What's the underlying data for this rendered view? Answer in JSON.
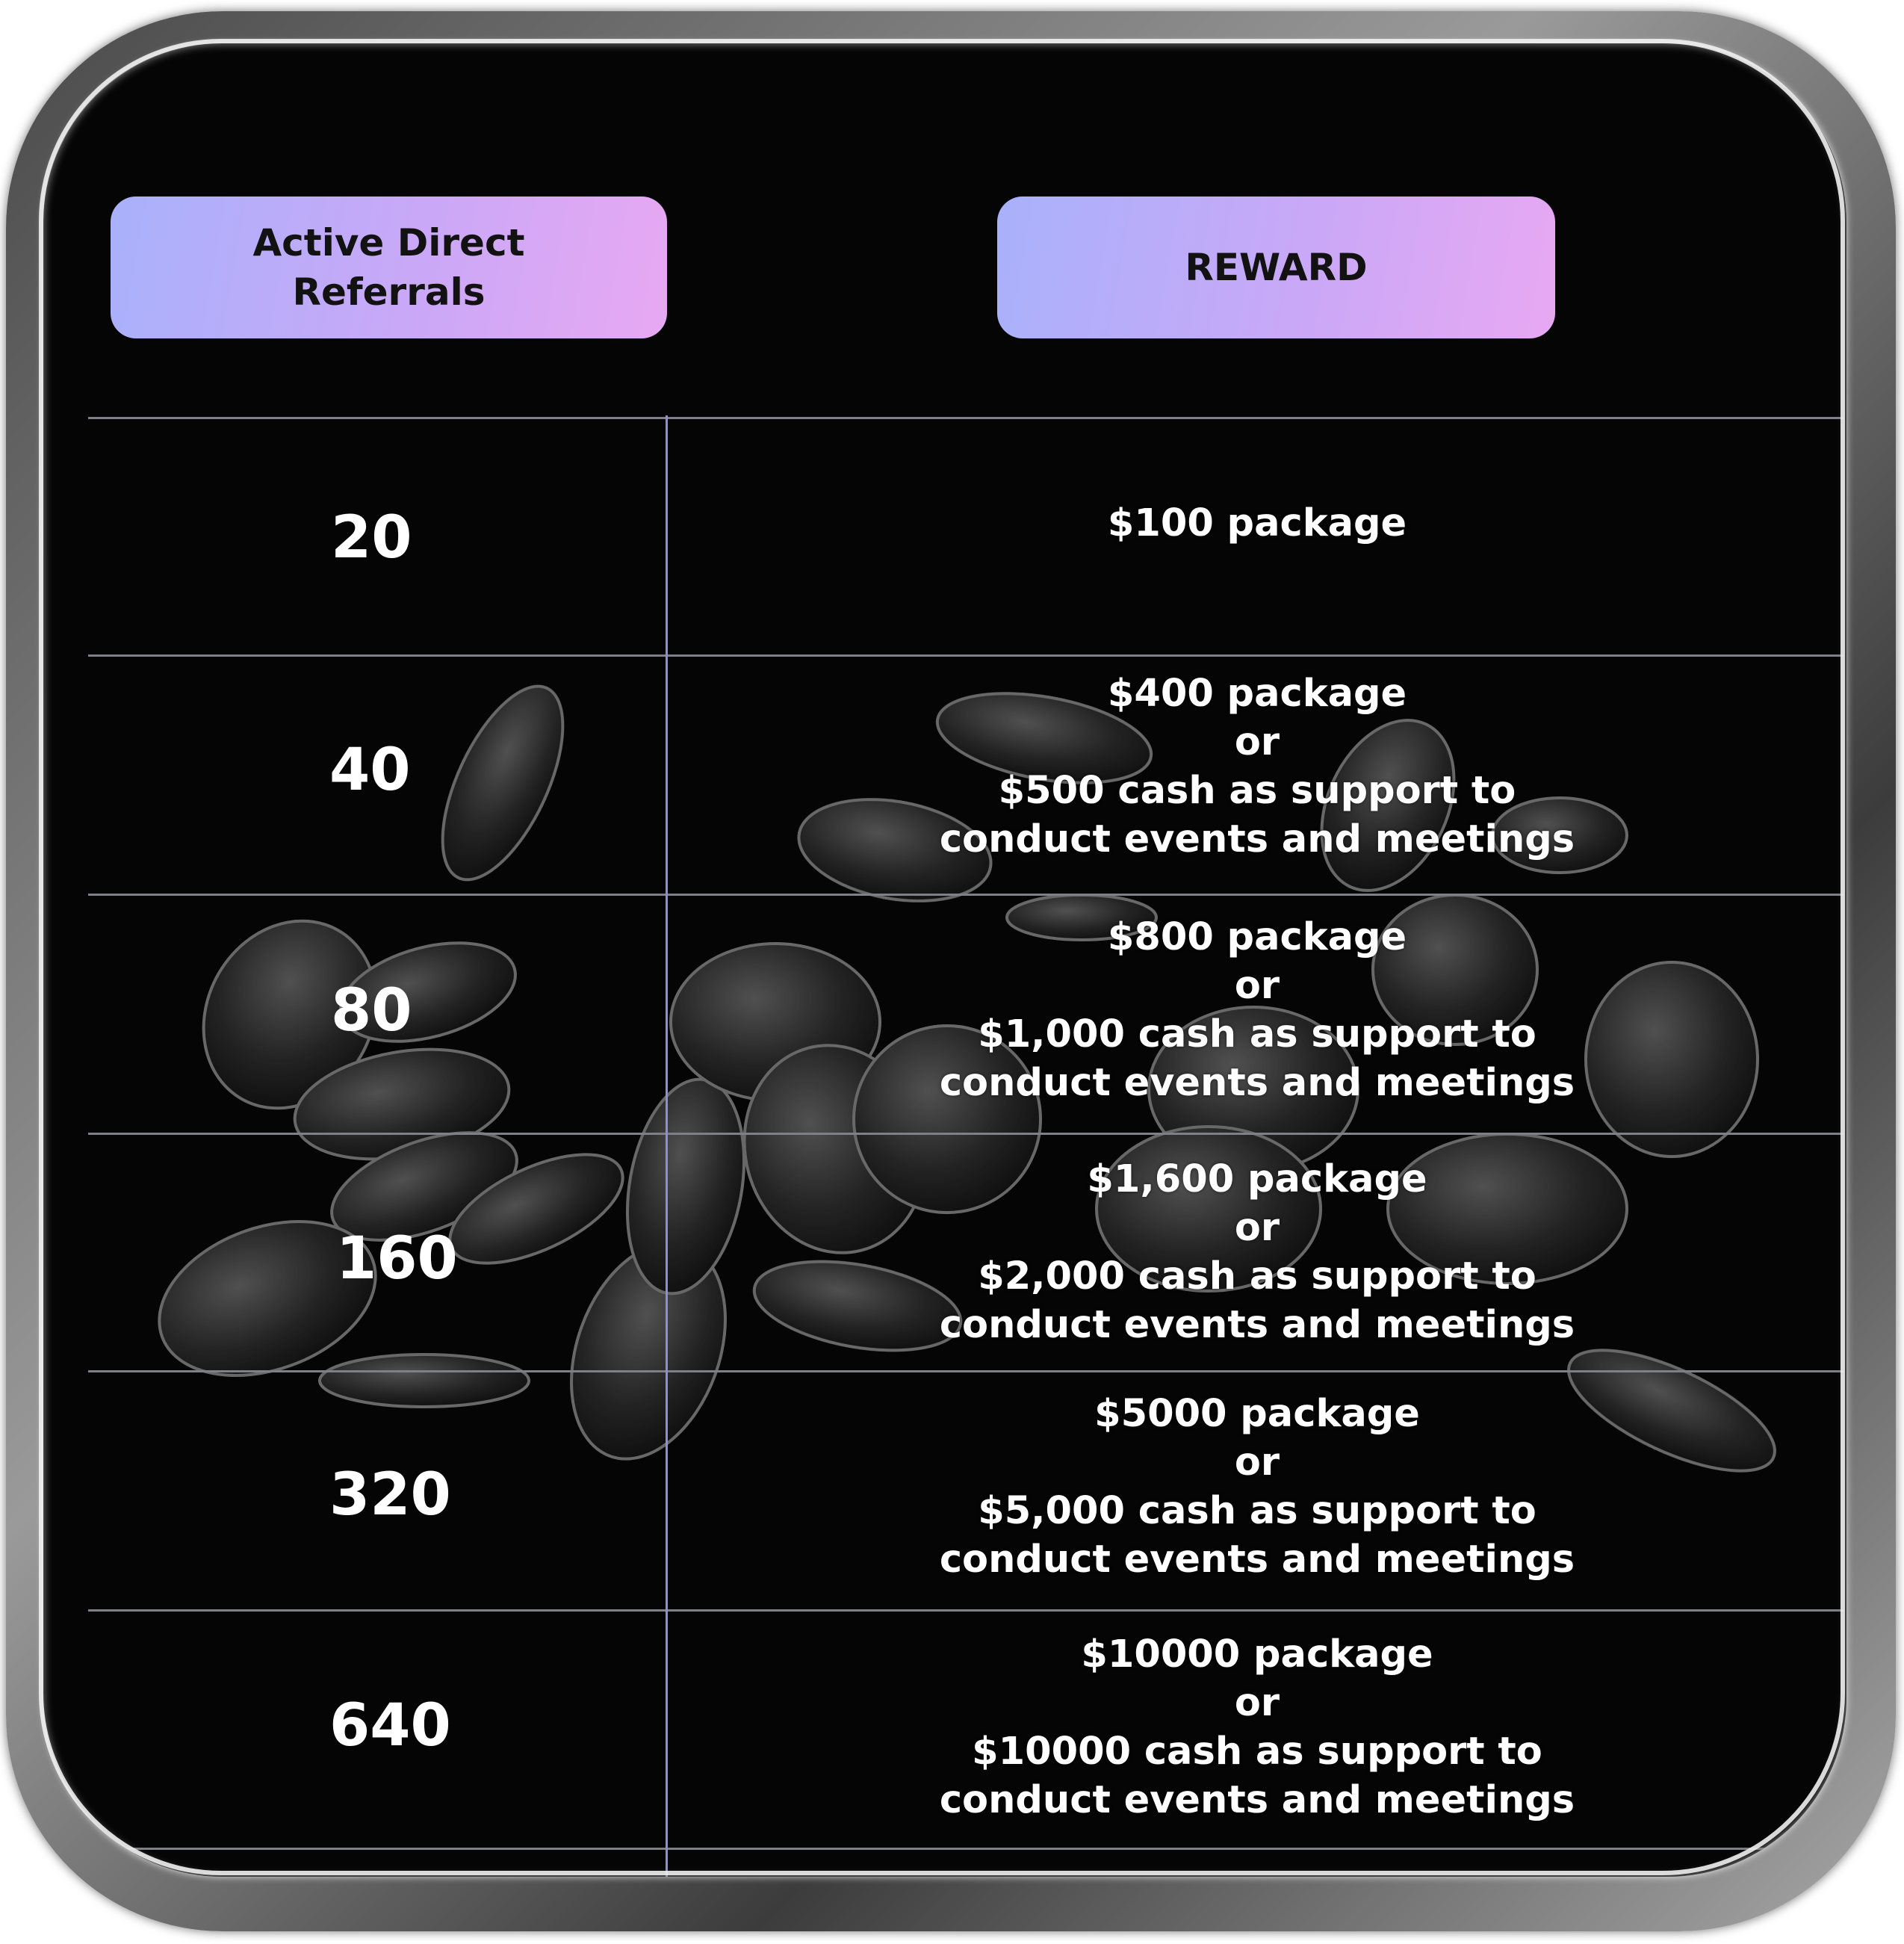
{
  "headers": {
    "referrals": "Active Direct Referrals",
    "reward": "REWARD"
  },
  "rows": [
    {
      "referrals": "20",
      "reward": [
        "$100 package"
      ]
    },
    {
      "referrals": "40",
      "reward": [
        "$400 package",
        "or",
        "$500 cash as support to",
        "conduct events and meetings"
      ]
    },
    {
      "referrals": "80",
      "reward": [
        "$800 package",
        "or",
        "$1,000 cash as support to",
        "conduct events and meetings"
      ]
    },
    {
      "referrals": "160",
      "reward": [
        "$1,600 package",
        "or",
        "$2,000 cash as support to",
        "conduct events and meetings"
      ]
    },
    {
      "referrals": "320",
      "reward": [
        "$5000 package",
        "or",
        "$5,000 cash as support to",
        "conduct events and meetings"
      ]
    },
    {
      "referrals": "640",
      "reward": [
        "$10000 package",
        "or",
        "$10000 cash as support to",
        "conduct events and meetings"
      ]
    }
  ],
  "colors": {
    "pill_start": "#a9b1fb",
    "pill_end": "#e8a8f2",
    "background": "#050505",
    "divider": "#8b8fd6"
  }
}
